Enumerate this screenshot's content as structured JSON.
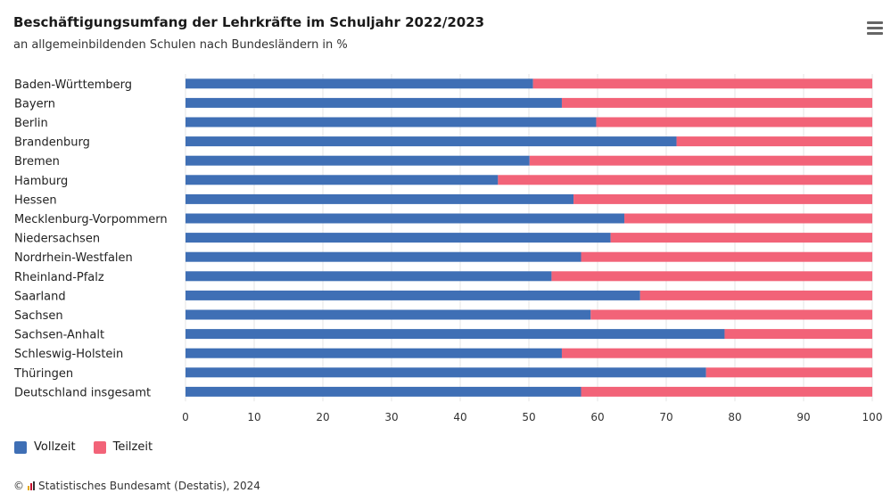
{
  "title": "Beschäftigungsumfang der Lehrkräfte im Schuljahr 2022/2023",
  "subtitle": "an allgemeinbildenden Schulen nach Bundesländern in %",
  "credit": "Statistisches Bundesamt (Destatis), 2024",
  "credit_symbol": "©",
  "menu_icon": "hamburger-menu-icon",
  "colors": {
    "vollzeit": "#3f6fb5",
    "teilzeit": "#f26378",
    "grid": "#e6e6e6",
    "axis": "#cccccc"
  },
  "chart_data": {
    "type": "bar",
    "orientation": "horizontal",
    "stacking": "percent",
    "title": "Beschäftigungsumfang der Lehrkräfte im Schuljahr 2022/2023",
    "subtitle": "an allgemeinbildenden Schulen nach Bundesländern in %",
    "categories": [
      "Baden-Württemberg",
      "Bayern",
      "Berlin",
      "Brandenburg",
      "Bremen",
      "Hamburg",
      "Hessen",
      "Mecklenburg-Vorpommern",
      "Niedersachsen",
      "Nordrhein-Westfalen",
      "Rheinland-Pfalz",
      "Saarland",
      "Sachsen",
      "Sachsen-Anhalt",
      "Schleswig-Holstein",
      "Thüringen",
      "Deutschland insgesamt"
    ],
    "series": [
      {
        "name": "Vollzeit",
        "values": [
          50.6,
          54.8,
          59.8,
          71.5,
          50.1,
          45.5,
          56.5,
          63.9,
          61.9,
          57.6,
          53.3,
          66.2,
          59.0,
          78.5,
          54.8,
          75.8,
          57.6
        ]
      },
      {
        "name": "Teilzeit",
        "values": [
          49.4,
          45.2,
          40.2,
          28.5,
          49.9,
          54.5,
          43.5,
          36.1,
          38.1,
          42.4,
          46.7,
          33.8,
          41.0,
          21.5,
          45.2,
          24.2,
          42.4
        ]
      }
    ],
    "xlim": [
      0,
      100
    ],
    "xticks": [
      0,
      10,
      20,
      30,
      40,
      50,
      60,
      70,
      80,
      90,
      100
    ],
    "xlabel": "",
    "ylabel": "",
    "grid": true,
    "legend": "bottom-left"
  }
}
